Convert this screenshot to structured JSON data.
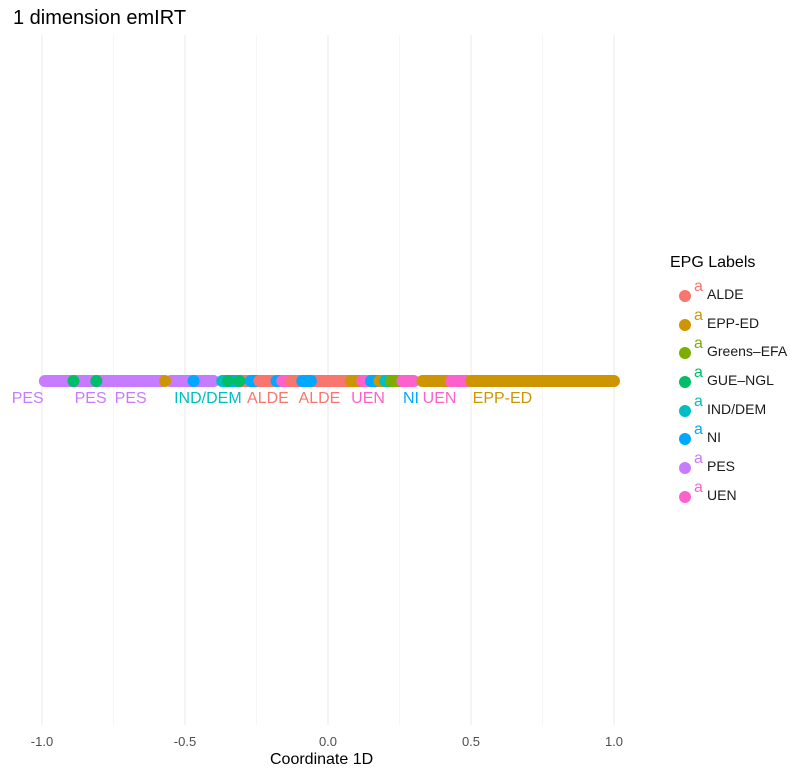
{
  "chart_data": {
    "type": "scatter",
    "title": "1 dimension emIRT",
    "xlabel": "Coordinate 1D",
    "ylabel": "",
    "xlim": [
      -1.0,
      1.0
    ],
    "x_ticks": [
      "-1.0",
      "-0.5",
      "0.0",
      "0.5",
      "1.0"
    ],
    "grid": "vertical gridlines at every 0.25",
    "legend": {
      "title": "EPG Labels",
      "position": "right",
      "glyph": "a"
    },
    "groups": [
      {
        "name": "ALDE",
        "color": "#F8766D"
      },
      {
        "name": "EPP-ED",
        "color": "#CD9600"
      },
      {
        "name": "Greens–EFA",
        "color": "#7CAE00"
      },
      {
        "name": "GUE–NGL",
        "color": "#00BE67"
      },
      {
        "name": "IND/DEM",
        "color": "#00BFC4"
      },
      {
        "name": "NI",
        "color": "#00A9FF"
      },
      {
        "name": "PES",
        "color": "#C77CFF"
      },
      {
        "name": "UEN",
        "color": "#FF61CC"
      }
    ],
    "segments": [
      {
        "group": "PES",
        "from": -0.99,
        "to": -0.58
      },
      {
        "group": "PES",
        "from": -0.55,
        "to": -0.4
      },
      {
        "group": "EPP-ED",
        "from": -0.57,
        "to": -0.57
      },
      {
        "group": "NI",
        "from": -0.47,
        "to": -0.47
      },
      {
        "group": "IND/DEM",
        "from": -0.37,
        "to": -0.28
      },
      {
        "group": "NI",
        "from": -0.35,
        "to": -0.33
      },
      {
        "group": "ALDE",
        "from": -0.31,
        "to": -0.27
      },
      {
        "group": "NI",
        "from": -0.27,
        "to": -0.24
      },
      {
        "group": "ALDE",
        "from": -0.24,
        "to": -0.19
      },
      {
        "group": "NI",
        "from": -0.18,
        "to": -0.15
      },
      {
        "group": "UEN",
        "from": -0.16,
        "to": -0.12
      },
      {
        "group": "ALDE",
        "from": -0.13,
        "to": 0.1
      },
      {
        "group": "NI",
        "from": -0.09,
        "to": -0.06
      },
      {
        "group": "EPP-ED",
        "from": 0.08,
        "to": 0.12
      },
      {
        "group": "UEN",
        "from": 0.12,
        "to": 0.15
      },
      {
        "group": "NI",
        "from": 0.15,
        "to": 0.18
      },
      {
        "group": "EPP-ED",
        "from": 0.18,
        "to": 0.2
      },
      {
        "group": "IND/DEM",
        "from": 0.2,
        "to": 0.22
      },
      {
        "group": "Greens–EFA",
        "from": 0.22,
        "to": 0.25
      },
      {
        "group": "UEN",
        "from": 0.26,
        "to": 0.3
      },
      {
        "group": "EPP-ED",
        "from": 0.33,
        "to": 0.42
      },
      {
        "group": "UEN",
        "from": 0.43,
        "to": 0.49
      },
      {
        "group": "EPP-ED",
        "from": 0.5,
        "to": 1.0
      }
    ],
    "points": [
      {
        "group": "GUE–NGL",
        "x": -0.89
      },
      {
        "group": "GUE–NGL",
        "x": -0.81
      },
      {
        "group": "GUE–NGL",
        "x": -0.31
      },
      {
        "group": "GUE–NGL",
        "x": -0.35
      }
    ],
    "annotations": [
      {
        "text": "PES",
        "group": "PES",
        "x": -1.05
      },
      {
        "text": "PES",
        "group": "PES",
        "x": -0.83
      },
      {
        "text": "PES",
        "group": "PES",
        "x": -0.69
      },
      {
        "text": "IND/DEM",
        "group": "IND/DEM",
        "x": -0.42
      },
      {
        "text": "ALDE",
        "group": "ALDE",
        "x": -0.21
      },
      {
        "text": "ALDE",
        "group": "ALDE",
        "x": -0.03
      },
      {
        "text": "UEN",
        "group": "UEN",
        "x": 0.14
      },
      {
        "text": "NI",
        "group": "NI",
        "x": 0.29
      },
      {
        "text": "UEN",
        "group": "UEN",
        "x": 0.39
      },
      {
        "text": "EPP-ED",
        "group": "EPP-ED",
        "x": 0.61
      }
    ]
  }
}
